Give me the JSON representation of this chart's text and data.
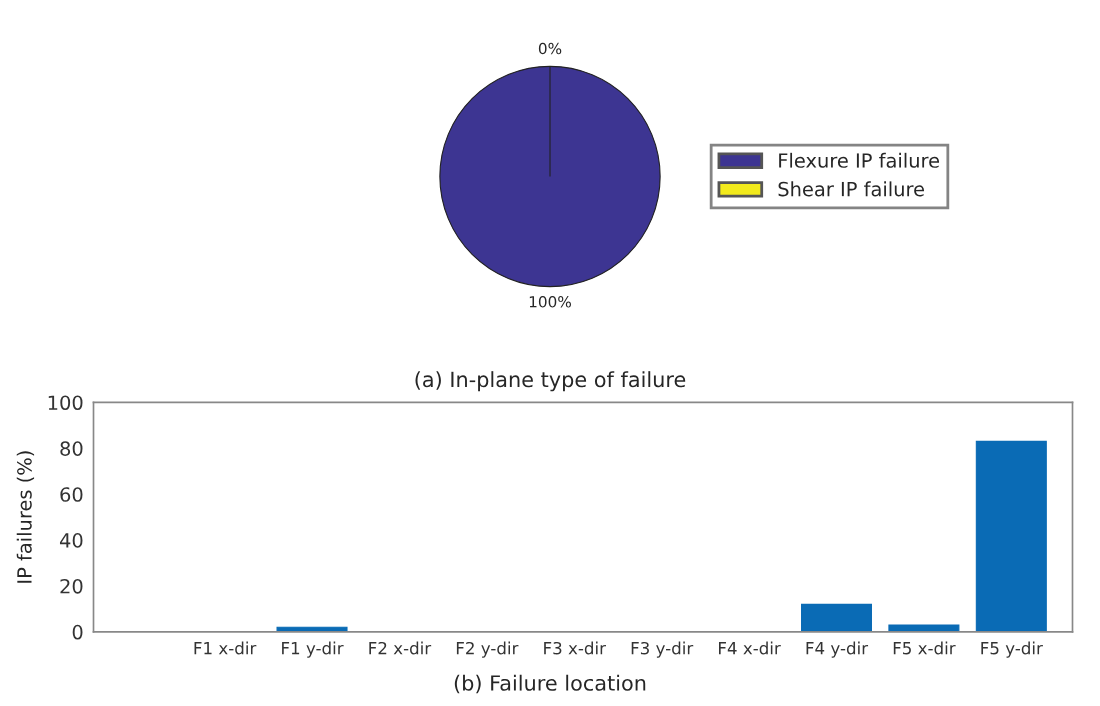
{
  "chart_data": [
    {
      "type": "pie",
      "categories": [
        "Flexure IP failure",
        "Shear IP failure"
      ],
      "values": [
        100,
        0
      ],
      "colors": [
        "#3d3592",
        "#f2ea1c"
      ],
      "value_labels": [
        "100%",
        "0%"
      ],
      "legend": "right",
      "annotations": [
        "(a) In-plane type of failure"
      ]
    },
    {
      "type": "bar",
      "categories": [
        "F1 x-dir",
        "F1 y-dir",
        "F2 x-dir",
        "F2 y-dir",
        "F3 x-dir",
        "F3 y-dir",
        "F4 x-dir",
        "F4 y-dir",
        "F5 x-dir",
        "F5 y-dir"
      ],
      "values": [
        0,
        2,
        0,
        0,
        0,
        0,
        0,
        12,
        3,
        83
      ],
      "color": "#0a6bb5",
      "ylabel": "IP failures (%)",
      "ylim": [
        0,
        100
      ],
      "yticks": [
        0,
        20,
        40,
        60,
        80,
        100
      ],
      "grid": false,
      "annotations": [
        "(b) Failure location"
      ]
    }
  ]
}
